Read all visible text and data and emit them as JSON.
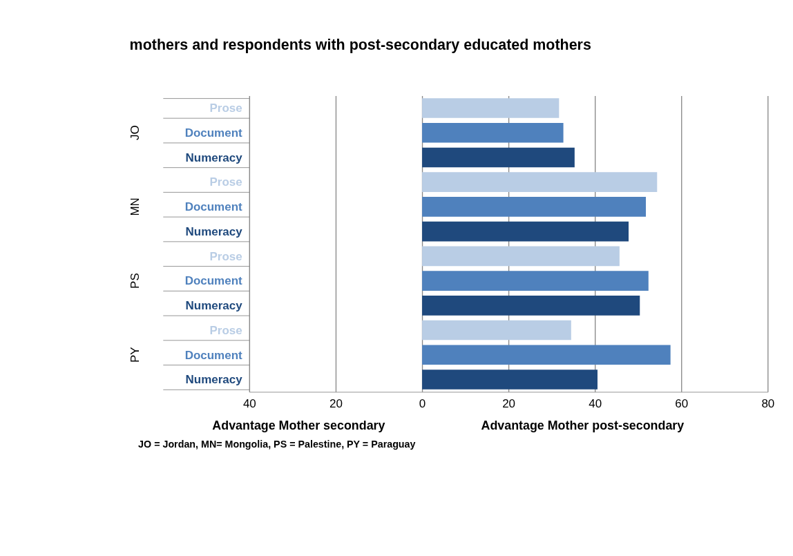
{
  "chart_data": {
    "type": "bar",
    "orientation": "horizontal",
    "title": "mothers and respondents with post-secondary educated mothers",
    "categories": [
      "JO",
      "MN",
      "PS",
      "PY"
    ],
    "series": [
      {
        "name": "Prose",
        "color": "#b9cde5",
        "values": [
          31.7,
          54.4,
          45.7,
          34.5
        ]
      },
      {
        "name": "Document",
        "color": "#4f81bd",
        "values": [
          32.7,
          51.8,
          52.4,
          57.5
        ]
      },
      {
        "name": "Numeracy",
        "color": "#1f497d",
        "values": [
          35.3,
          47.8,
          50.4,
          40.6
        ]
      }
    ],
    "xlim": [
      -40,
      80
    ],
    "xticks": [
      {
        "value": -40,
        "label": "40"
      },
      {
        "value": -20,
        "label": "20"
      },
      0,
      20,
      40,
      60,
      80
    ],
    "grid": "x",
    "legend": false,
    "annotations": [
      "Advantage Mother secondary",
      "Advantage Mother post-secondary",
      "JO = Jordan, MN= Mongolia, PS = Palestine, PY = Paraguay"
    ]
  }
}
